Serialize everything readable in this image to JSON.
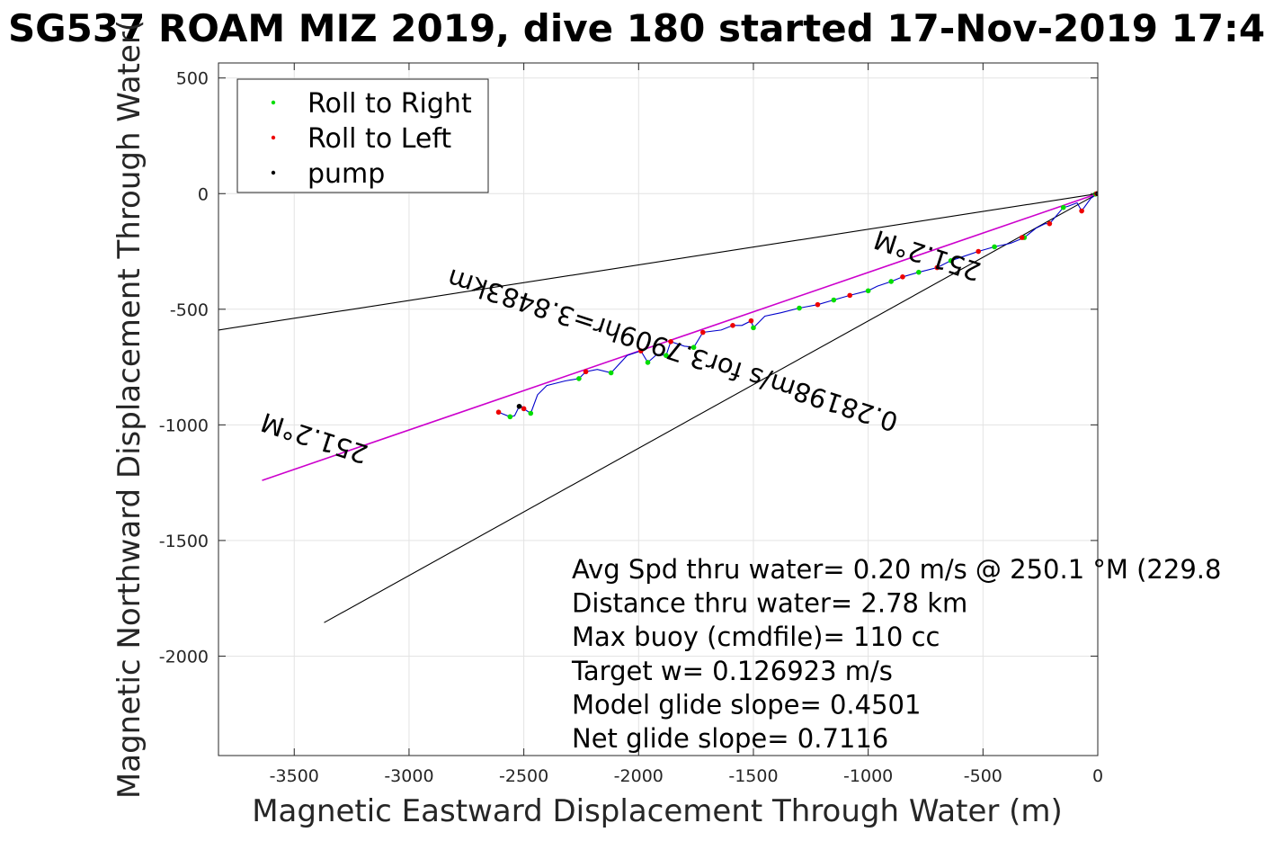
{
  "chart_data": {
    "type": "line",
    "title": "SG537 ROAM MIZ 2019, dive 180 started 17-Nov-2019 17:4",
    "xlabel": "Magnetic Eastward Displacement Through Water (m)",
    "ylabel": "Magnetic Northward Displacement Through Water(",
    "xlim": [
      -3830,
      0
    ],
    "ylim": [
      -2430,
      565
    ],
    "xticks": [
      -3500,
      -3000,
      -2500,
      -2000,
      -1500,
      -1000,
      -500,
      0
    ],
    "yticks": [
      500,
      0,
      -500,
      -1000,
      -1500,
      -2000
    ],
    "xtick_labels": [
      "-3500",
      "-3000",
      "-2500",
      "-2000",
      "-1500",
      "-1000",
      "-500",
      "0"
    ],
    "ytick_labels": [
      "500",
      "0",
      "-500",
      "-1000",
      "-1500",
      "-2000"
    ],
    "grid": true,
    "legend_position": "top-left",
    "legend": [
      {
        "label": "Roll to Right",
        "color": "#00dd00"
      },
      {
        "label": "Roll to Left",
        "color": "#ee0000"
      },
      {
        "label": "pump",
        "color": "#000000"
      }
    ],
    "series": [
      {
        "color": "#000000",
        "style": "line",
        "x": [
          0,
          -3830
        ],
        "y": [
          0,
          -590
        ]
      },
      {
        "color": "#000000",
        "style": "line",
        "x": [
          0,
          -3370
        ],
        "y": [
          0,
          -1855
        ]
      },
      {
        "color": "#cc00cc",
        "style": "line",
        "x": [
          0,
          -3640
        ],
        "y": [
          0,
          -1240
        ]
      },
      {
        "name": "Roll to Right",
        "color": "#00dd00",
        "style": "points",
        "x": [
          -10,
          -150,
          -320,
          -450,
          -640,
          -780,
          -900,
          -1000,
          -1150,
          -1300,
          -1500,
          -1760,
          -1880,
          -1960,
          -2120,
          -2260,
          -2470,
          -2560
        ],
        "y": [
          -2,
          -60,
          -190,
          -230,
          -290,
          -340,
          -380,
          -420,
          -460,
          -495,
          -580,
          -665,
          -700,
          -730,
          -775,
          -800,
          -950,
          -965
        ]
      },
      {
        "name": "Roll to Left",
        "color": "#ee0000",
        "style": "points",
        "x": [
          -5,
          -70,
          -210,
          -330,
          -520,
          -700,
          -850,
          -1080,
          -1220,
          -1510,
          -1590,
          -1720,
          -1860,
          -1990,
          -2230,
          -2500,
          -2610
        ],
        "y": [
          0,
          -75,
          -130,
          -190,
          -250,
          -320,
          -360,
          -440,
          -480,
          -550,
          -570,
          -600,
          -640,
          -680,
          -770,
          -930,
          -945
        ]
      },
      {
        "name": "pump",
        "color": "#000000",
        "style": "points",
        "x": [
          0,
          -2520
        ],
        "y": [
          0,
          -920
        ]
      },
      {
        "color": "#0000cc",
        "style": "line",
        "x": [
          0,
          -30,
          -70,
          -90,
          -130,
          -150,
          -210,
          -230,
          -270,
          -320,
          -380,
          -450,
          -520,
          -580,
          -640,
          -700,
          -780,
          -850,
          -900,
          -960,
          -1000,
          -1080,
          -1150,
          -1220,
          -1300,
          -1380,
          -1450,
          -1500,
          -1510,
          -1550,
          -1590,
          -1640,
          -1720,
          -1760,
          -1800,
          -1860,
          -1880,
          -1920,
          -1960,
          -1990,
          -2050,
          -2120,
          -2180,
          -2230,
          -2260,
          -2320,
          -2400,
          -2440,
          -2470,
          -2500,
          -2510,
          -2520,
          -2540,
          -2560,
          -2610
        ],
        "y": [
          0,
          -20,
          -75,
          -40,
          -55,
          -60,
          -130,
          -130,
          -150,
          -190,
          -215,
          -230,
          -250,
          -270,
          -290,
          -320,
          -340,
          -360,
          -380,
          -400,
          -420,
          -440,
          -460,
          -480,
          -495,
          -515,
          -530,
          -580,
          -550,
          -570,
          -570,
          -590,
          -600,
          -665,
          -660,
          -640,
          -700,
          -695,
          -730,
          -680,
          -700,
          -775,
          -760,
          -770,
          -800,
          -810,
          -830,
          -870,
          -950,
          -930,
          -920,
          -920,
          -960,
          -965,
          -945
        ]
      }
    ],
    "annotations": [
      {
        "text": "251.2°M",
        "x": -3400,
        "y": -1020,
        "rotation_deg": 198
      },
      {
        "text": "0.28198m/s for3.7909hr=3.8483km",
        "x": -1840,
        "y": -640,
        "rotation_deg": 198
      },
      {
        "text": "251.2°M",
        "x": -730,
        "y": -230,
        "rotation_deg": 198
      }
    ],
    "stats": [
      "Avg Spd thru water=  0.20 m/s @ 250.1 °M (229.8",
      "Distance thru water=  2.78 km",
      "Max buoy (cmdfile)= 110 cc",
      "Target w= 0.126923 m/s",
      "Model glide slope= 0.4501",
      "Net glide slope= 0.7116"
    ]
  }
}
